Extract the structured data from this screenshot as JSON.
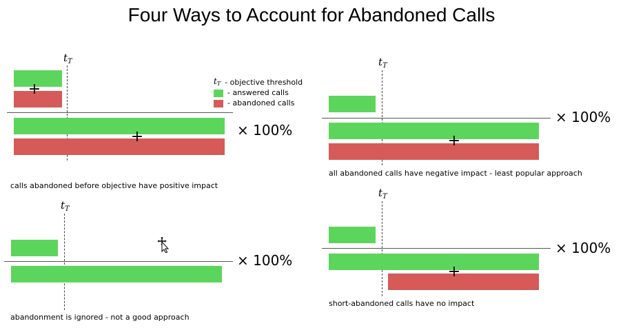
{
  "title": "Four Ways to Account for Abandoned Calls",
  "threshold_symbol": "t",
  "threshold_subscript": "T",
  "multiplier_label": "× 100%",
  "plus_symbol": "+",
  "colors": {
    "answered": "#5cd55c",
    "abandoned": "#d55a58"
  },
  "legend": {
    "threshold": "- objective threshold",
    "answered": "- answered calls",
    "abandoned": "- abandoned calls"
  },
  "panels": [
    {
      "caption": "calls abandoned before objective have positive impact"
    },
    {
      "caption": "all abandoned calls have negative impact - least popular approach"
    },
    {
      "caption": "abandonment is ignored - not a good approach"
    },
    {
      "caption": "short-abandoned calls have no impact"
    }
  ]
}
